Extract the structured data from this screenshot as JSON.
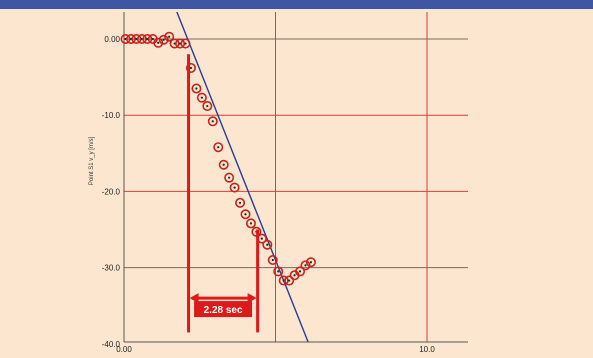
{
  "chart_data": {
    "type": "scatter",
    "ylabel": "Point S1 v_y [m/s]",
    "xlim": [
      0,
      10
    ],
    "ylim": [
      -40,
      0
    ],
    "x_tick_labels": [
      {
        "value": 0,
        "label": "0.00"
      },
      {
        "value": 10,
        "label": "10.0"
      }
    ],
    "y_tick_labels": [
      {
        "value": 0,
        "label": "0.00"
      },
      {
        "value": -10,
        "label": "-10.0"
      },
      {
        "value": -20,
        "label": "-20.0"
      },
      {
        "value": -30,
        "label": "-30.0"
      },
      {
        "value": -40,
        "label": "-40.0"
      }
    ],
    "red_gridlines": {
      "x": [
        10
      ],
      "y": [
        -10,
        -20
      ]
    },
    "dark_gridlines": {
      "x": [
        5
      ],
      "y": [
        0,
        -30
      ]
    },
    "grid": true,
    "series": [
      {
        "marker": "circle with dot",
        "color": "#c8231c",
        "points": [
          [
            0.05,
            0.0
          ],
          [
            0.23,
            0.0
          ],
          [
            0.41,
            0.0
          ],
          [
            0.59,
            0.0
          ],
          [
            0.77,
            0.0
          ],
          [
            0.95,
            0.0
          ],
          [
            1.13,
            -0.5
          ],
          [
            1.31,
            -0.1
          ],
          [
            1.49,
            0.3
          ],
          [
            1.67,
            -0.6
          ],
          [
            1.85,
            -0.6
          ],
          [
            2.03,
            -0.6
          ],
          [
            2.21,
            -3.8
          ],
          [
            2.39,
            -6.5
          ],
          [
            2.57,
            -7.7
          ],
          [
            2.75,
            -8.8
          ],
          [
            2.93,
            -10.8
          ],
          [
            3.11,
            -14.2
          ],
          [
            3.29,
            -16.5
          ],
          [
            3.47,
            -18.2
          ],
          [
            3.65,
            -19.5
          ],
          [
            3.83,
            -21.5
          ],
          [
            4.01,
            -23.0
          ],
          [
            4.19,
            -24.2
          ],
          [
            4.37,
            -25.3
          ],
          [
            4.55,
            -26.2
          ],
          [
            4.73,
            -27.0
          ],
          [
            4.91,
            -29.0
          ],
          [
            5.09,
            -30.5
          ],
          [
            5.27,
            -31.7
          ],
          [
            5.45,
            -31.7
          ],
          [
            5.63,
            -31.0
          ],
          [
            5.81,
            -30.5
          ],
          [
            5.99,
            -29.7
          ],
          [
            6.17,
            -29.3
          ]
        ]
      }
    ],
    "fit_line": {
      "color": "#283c9b",
      "from": [
        1.7,
        4.0
      ],
      "to": [
        6.3,
        -42.0
      ]
    },
    "annotation": {
      "label": "2.28 sec",
      "x_start": 2.13,
      "x_end": 4.41,
      "left_marker_y": [
        -2.0,
        -38.5
      ],
      "right_marker_y": [
        -25.0,
        -38.5
      ],
      "arrow_y": -34.0,
      "color": "#dd1a1a"
    }
  }
}
